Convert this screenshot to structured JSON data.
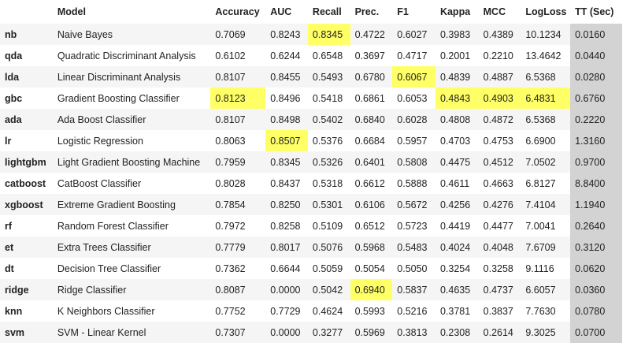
{
  "colors": {
    "highlight": "#ffff66",
    "tt_column": "#d3d3d3",
    "row_stripe": "#f5f5f5"
  },
  "header": {
    "index": "",
    "model": "Model",
    "accuracy": "Accuracy",
    "auc": "AUC",
    "recall": "Recall",
    "prec": "Prec.",
    "f1": "F1",
    "kappa": "Kappa",
    "mcc": "MCC",
    "logloss": "LogLoss",
    "tt": "TT (Sec)"
  },
  "rows": [
    {
      "id": "nb",
      "model": "Naive Bayes",
      "accuracy": "0.7069",
      "auc": "0.8243",
      "recall": "0.8345",
      "prec": "0.4722",
      "f1": "0.6027",
      "kappa": "0.3983",
      "mcc": "0.4389",
      "logloss": "10.1234",
      "tt": "0.0160"
    },
    {
      "id": "qda",
      "model": "Quadratic Discriminant Analysis",
      "accuracy": "0.6102",
      "auc": "0.6244",
      "recall": "0.6548",
      "prec": "0.3697",
      "f1": "0.4717",
      "kappa": "0.2001",
      "mcc": "0.2210",
      "logloss": "13.4642",
      "tt": "0.0440"
    },
    {
      "id": "lda",
      "model": "Linear Discriminant Analysis",
      "accuracy": "0.8107",
      "auc": "0.8455",
      "recall": "0.5493",
      "prec": "0.6780",
      "f1": "0.6067",
      "kappa": "0.4839",
      "mcc": "0.4887",
      "logloss": "6.5368",
      "tt": "0.0280"
    },
    {
      "id": "gbc",
      "model": "Gradient Boosting Classifier",
      "accuracy": "0.8123",
      "auc": "0.8496",
      "recall": "0.5418",
      "prec": "0.6861",
      "f1": "0.6053",
      "kappa": "0.4843",
      "mcc": "0.4903",
      "logloss": "6.4831",
      "tt": "0.6760"
    },
    {
      "id": "ada",
      "model": "Ada Boost Classifier",
      "accuracy": "0.8107",
      "auc": "0.8498",
      "recall": "0.5402",
      "prec": "0.6840",
      "f1": "0.6028",
      "kappa": "0.4808",
      "mcc": "0.4872",
      "logloss": "6.5368",
      "tt": "0.2220"
    },
    {
      "id": "lr",
      "model": "Logistic Regression",
      "accuracy": "0.8063",
      "auc": "0.8507",
      "recall": "0.5376",
      "prec": "0.6684",
      "f1": "0.5957",
      "kappa": "0.4703",
      "mcc": "0.4753",
      "logloss": "6.6900",
      "tt": "1.3160"
    },
    {
      "id": "lightgbm",
      "model": "Light Gradient Boosting Machine",
      "accuracy": "0.7959",
      "auc": "0.8345",
      "recall": "0.5326",
      "prec": "0.6401",
      "f1": "0.5808",
      "kappa": "0.4475",
      "mcc": "0.4512",
      "logloss": "7.0502",
      "tt": "0.9700"
    },
    {
      "id": "catboost",
      "model": "CatBoost Classifier",
      "accuracy": "0.8028",
      "auc": "0.8437",
      "recall": "0.5318",
      "prec": "0.6612",
      "f1": "0.5888",
      "kappa": "0.4611",
      "mcc": "0.4663",
      "logloss": "6.8127",
      "tt": "8.8400"
    },
    {
      "id": "xgboost",
      "model": "Extreme Gradient Boosting",
      "accuracy": "0.7854",
      "auc": "0.8250",
      "recall": "0.5301",
      "prec": "0.6106",
      "f1": "0.5672",
      "kappa": "0.4256",
      "mcc": "0.4276",
      "logloss": "7.4104",
      "tt": "1.1940"
    },
    {
      "id": "rf",
      "model": "Random Forest Classifier",
      "accuracy": "0.7972",
      "auc": "0.8258",
      "recall": "0.5109",
      "prec": "0.6512",
      "f1": "0.5723",
      "kappa": "0.4419",
      "mcc": "0.4477",
      "logloss": "7.0041",
      "tt": "0.2640"
    },
    {
      "id": "et",
      "model": "Extra Trees Classifier",
      "accuracy": "0.7779",
      "auc": "0.8017",
      "recall": "0.5076",
      "prec": "0.5968",
      "f1": "0.5483",
      "kappa": "0.4024",
      "mcc": "0.4048",
      "logloss": "7.6709",
      "tt": "0.3120"
    },
    {
      "id": "dt",
      "model": "Decision Tree Classifier",
      "accuracy": "0.7362",
      "auc": "0.6644",
      "recall": "0.5059",
      "prec": "0.5054",
      "f1": "0.5050",
      "kappa": "0.3254",
      "mcc": "0.3258",
      "logloss": "9.1116",
      "tt": "0.0620"
    },
    {
      "id": "ridge",
      "model": "Ridge Classifier",
      "accuracy": "0.8087",
      "auc": "0.0000",
      "recall": "0.5042",
      "prec": "0.6940",
      "f1": "0.5837",
      "kappa": "0.4635",
      "mcc": "0.4737",
      "logloss": "6.6057",
      "tt": "0.0360"
    },
    {
      "id": "knn",
      "model": "K Neighbors Classifier",
      "accuracy": "0.7752",
      "auc": "0.7729",
      "recall": "0.4624",
      "prec": "0.5993",
      "f1": "0.5216",
      "kappa": "0.3781",
      "mcc": "0.3837",
      "logloss": "7.7630",
      "tt": "0.0780"
    },
    {
      "id": "svm",
      "model": "SVM - Linear Kernel",
      "accuracy": "0.7307",
      "auc": "0.0000",
      "recall": "0.3277",
      "prec": "0.5969",
      "f1": "0.3813",
      "kappa": "0.2308",
      "mcc": "0.2614",
      "logloss": "9.3025",
      "tt": "0.0700"
    }
  ],
  "highlighted_best": {
    "accuracy": "gbc",
    "auc": "lr",
    "recall": "nb",
    "prec": "ridge",
    "f1": "lda",
    "kappa": "gbc",
    "mcc": "gbc",
    "logloss": "gbc"
  }
}
